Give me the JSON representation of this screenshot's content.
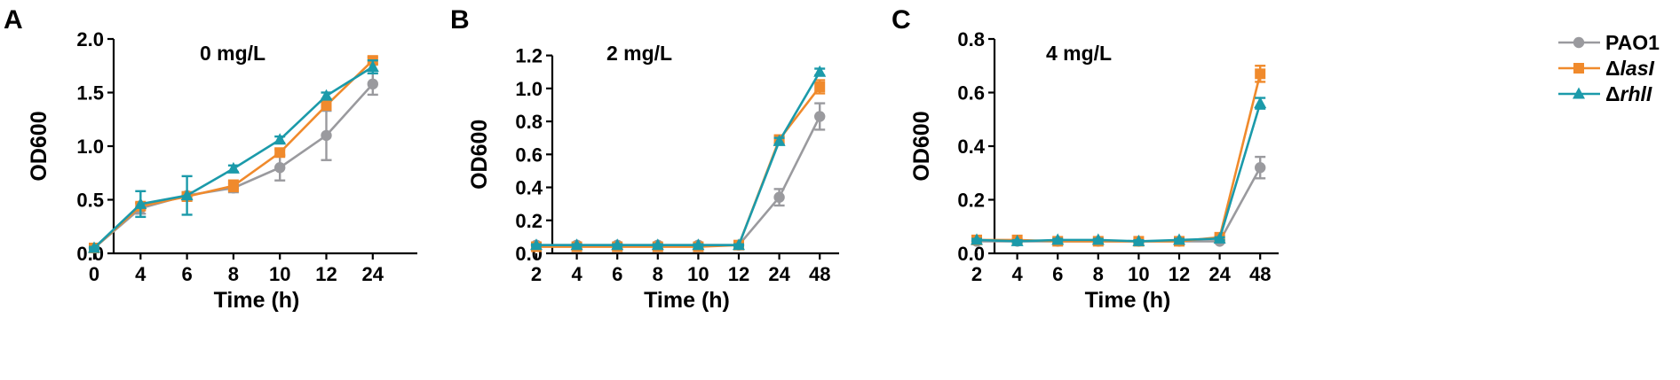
{
  "figure": {
    "legend": [
      {
        "prefix": "",
        "name": "PAO1",
        "italic": false,
        "color": "#9a9a9e",
        "marker": "circle"
      },
      {
        "prefix": "Δ",
        "name": "lasI",
        "italic": true,
        "color": "#f08a2c",
        "marker": "square"
      },
      {
        "prefix": "Δ",
        "name": "rhlI",
        "italic": true,
        "color": "#1b9aaa",
        "marker": "triangle"
      }
    ]
  },
  "chart_data": [
    {
      "type": "line",
      "panel_label": "A",
      "title": "0 mg/L",
      "xlabel": "Time (h)",
      "ylabel": "OD600",
      "categories": [
        "0",
        "4",
        "6",
        "8",
        "10",
        "12",
        "24"
      ],
      "ylim": [
        0,
        2.0
      ],
      "yticks": [
        "0.0",
        "0.5",
        "1.0",
        "1.5",
        "2.0"
      ],
      "grid": false,
      "series": [
        {
          "name": "PAO1",
          "values": [
            0.05,
            0.42,
            0.54,
            0.61,
            0.8,
            1.1,
            1.58
          ],
          "errors": [
            0.01,
            0.05,
            0.03,
            0.04,
            0.12,
            0.23,
            0.1
          ]
        },
        {
          "name": "ΔlasI",
          "values": [
            0.05,
            0.44,
            0.53,
            0.63,
            0.94,
            1.38,
            1.8
          ],
          "errors": [
            0.01,
            0.03,
            0.04,
            0.05,
            0.03,
            0.03,
            0.03
          ]
        },
        {
          "name": "ΔrhlI",
          "values": [
            0.05,
            0.46,
            0.54,
            0.79,
            1.06,
            1.47,
            1.74
          ],
          "errors": [
            0.01,
            0.12,
            0.18,
            0.03,
            0.03,
            0.03,
            0.06
          ]
        }
      ]
    },
    {
      "type": "line",
      "panel_label": "B",
      "title": "2 mg/L",
      "xlabel": "Time (h)",
      "ylabel": "OD600",
      "categories": [
        "2",
        "4",
        "6",
        "8",
        "10",
        "12",
        "24",
        "48"
      ],
      "ylim": [
        0,
        1.3
      ],
      "yticks": [
        "0.0",
        "0.2",
        "0.4",
        "0.6",
        "0.8",
        "1.0",
        "1.2"
      ],
      "grid": false,
      "series": [
        {
          "name": "PAO1",
          "values": [
            0.05,
            0.05,
            0.05,
            0.05,
            0.05,
            0.05,
            0.34,
            0.83
          ],
          "errors": [
            0.005,
            0.005,
            0.005,
            0.005,
            0.005,
            0.005,
            0.05,
            0.08
          ]
        },
        {
          "name": "ΔlasI",
          "values": [
            0.04,
            0.04,
            0.04,
            0.04,
            0.04,
            0.05,
            0.69,
            1.01
          ],
          "errors": [
            0.005,
            0.005,
            0.005,
            0.005,
            0.005,
            0.005,
            0.02,
            0.04
          ]
        },
        {
          "name": "ΔrhlI",
          "values": [
            0.05,
            0.05,
            0.05,
            0.05,
            0.05,
            0.05,
            0.68,
            1.1
          ],
          "errors": [
            0.005,
            0.005,
            0.005,
            0.005,
            0.005,
            0.005,
            0.02,
            0.02
          ]
        }
      ]
    },
    {
      "type": "line",
      "panel_label": "C",
      "title": "4 mg/L",
      "xlabel": "Time (h)",
      "ylabel": "OD600",
      "categories": [
        "2",
        "4",
        "6",
        "8",
        "10",
        "12",
        "24",
        "48"
      ],
      "ylim": [
        0,
        0.8
      ],
      "yticks": [
        "0.0",
        "0.2",
        "0.4",
        "0.6",
        "0.8"
      ],
      "grid": false,
      "series": [
        {
          "name": "PAO1",
          "values": [
            0.045,
            0.045,
            0.045,
            0.045,
            0.045,
            0.045,
            0.045,
            0.32
          ],
          "errors": [
            0.004,
            0.004,
            0.004,
            0.004,
            0.004,
            0.004,
            0.004,
            0.04
          ]
        },
        {
          "name": "ΔlasI",
          "values": [
            0.05,
            0.05,
            0.045,
            0.045,
            0.045,
            0.045,
            0.06,
            0.67
          ],
          "errors": [
            0.004,
            0.004,
            0.004,
            0.004,
            0.004,
            0.004,
            0.005,
            0.03
          ]
        },
        {
          "name": "ΔrhlI",
          "values": [
            0.05,
            0.045,
            0.05,
            0.05,
            0.045,
            0.05,
            0.055,
            0.56
          ],
          "errors": [
            0.004,
            0.004,
            0.004,
            0.004,
            0.004,
            0.004,
            0.005,
            0.02
          ]
        }
      ]
    }
  ]
}
